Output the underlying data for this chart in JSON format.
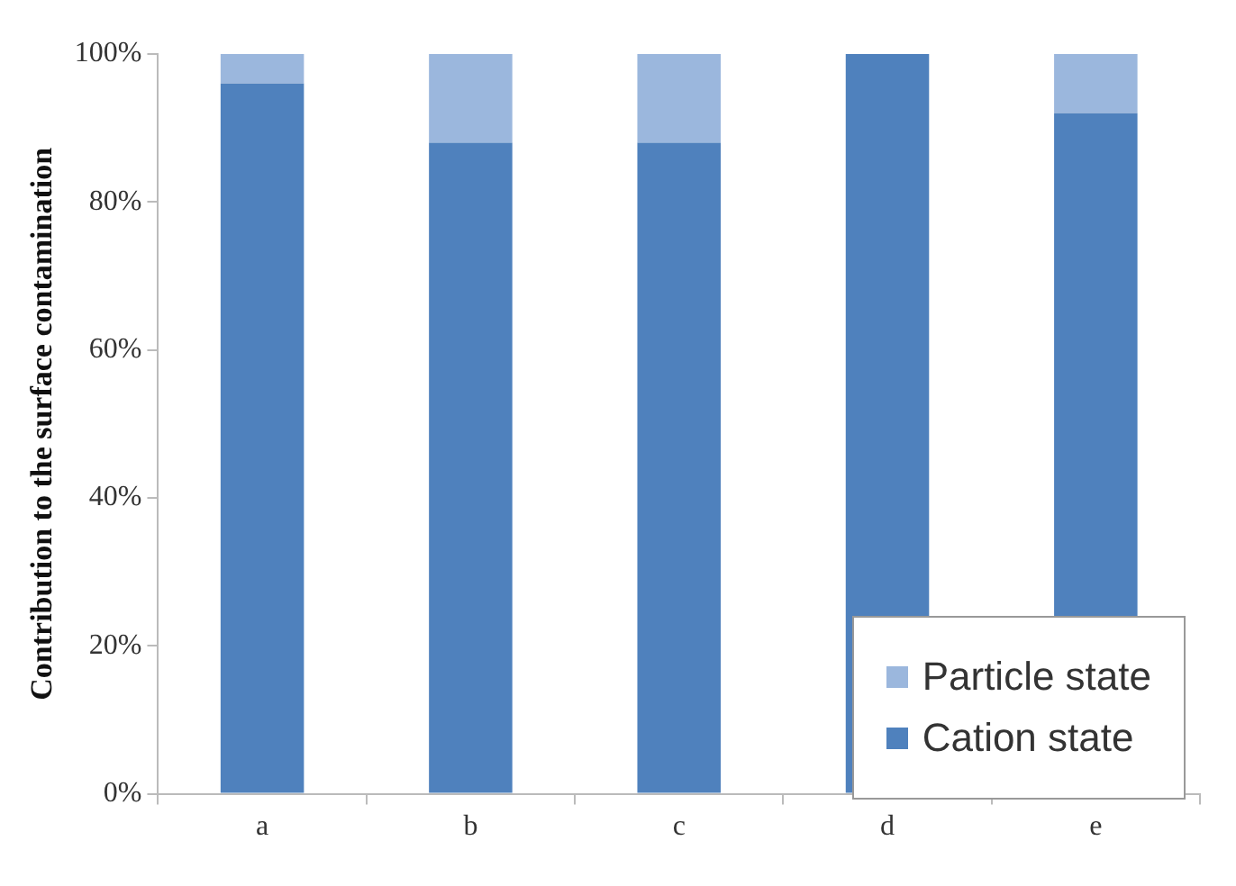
{
  "chart_data": {
    "type": "bar",
    "ylabel": "Contribution to the surface contamination",
    "categories": [
      "a",
      "b",
      "c",
      "d",
      "e"
    ],
    "stacked": true,
    "legend": "bottom right",
    "grid": false,
    "series": [
      {
        "name": "Cation state",
        "color": "#4f81bd",
        "values": [
          96,
          88,
          88,
          100,
          92
        ]
      },
      {
        "name": "Particle state",
        "color": "#9bb7dd",
        "values": [
          4,
          12,
          12,
          0,
          8
        ]
      }
    ],
    "ylim": [
      0,
      100
    ],
    "yticks": [
      {
        "value": 0,
        "label": "0%"
      },
      {
        "value": 20,
        "label": "20%"
      },
      {
        "value": 40,
        "label": "40%"
      },
      {
        "value": 60,
        "label": "60%"
      },
      {
        "value": 80,
        "label": "80%"
      },
      {
        "value": 100,
        "label": "100%"
      }
    ]
  }
}
